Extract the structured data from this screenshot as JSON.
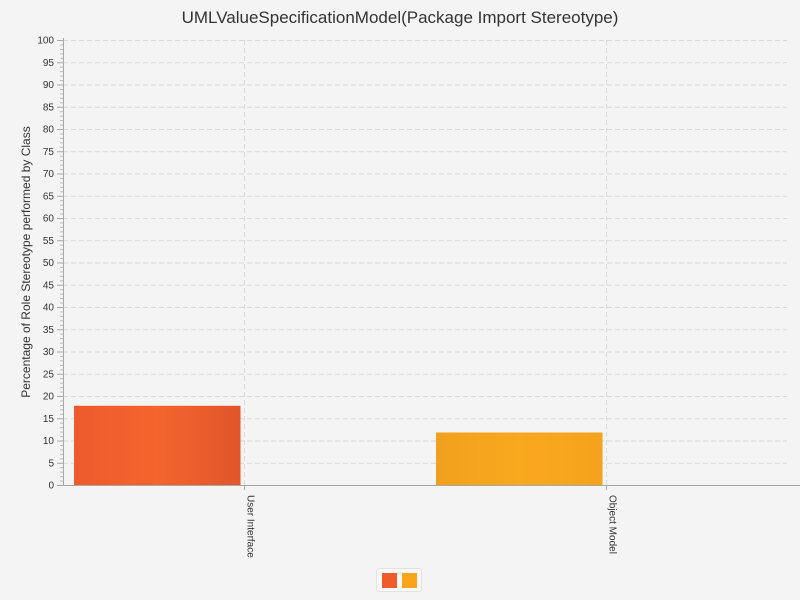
{
  "chart_data": {
    "type": "bar",
    "title": "UMLValueSpecificationModel(Package Import Stereotype)",
    "xlabel": "",
    "ylabel": "Percentage of Role Stereotype performed by Class",
    "categories": [
      "User Interface",
      "Object Model"
    ],
    "values": [
      17.8,
      11.8
    ],
    "colors": [
      "#ef5b2b",
      "#f8a51c"
    ],
    "ylim": [
      0,
      100
    ],
    "ytick_step": 5,
    "grid": true,
    "legend": "bottom-center"
  }
}
